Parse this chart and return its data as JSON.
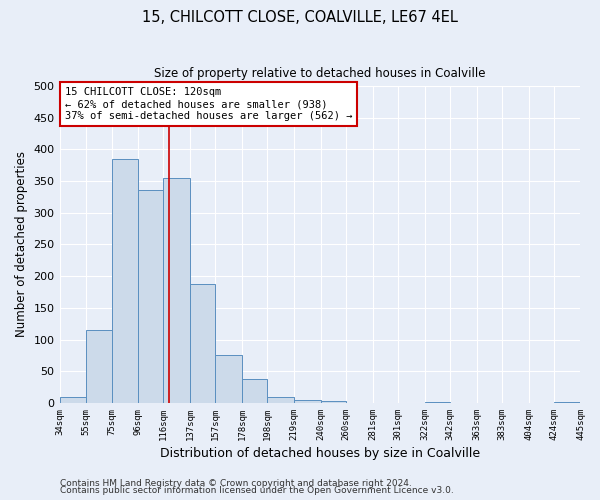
{
  "title": "15, CHILCOTT CLOSE, COALVILLE, LE67 4EL",
  "subtitle": "Size of property relative to detached houses in Coalville",
  "xlabel": "Distribution of detached houses by size in Coalville",
  "ylabel": "Number of detached properties",
  "bar_color": "#ccdaea",
  "bar_edge_color": "#5a8fc0",
  "background_color": "#e8eef8",
  "plot_bg_color": "#e8eef8",
  "grid_color": "#ffffff",
  "property_line_x": 120,
  "property_line_color": "#cc0000",
  "annotation_title": "15 CHILCOTT CLOSE: 120sqm",
  "annotation_line1": "← 62% of detached houses are smaller (938)",
  "annotation_line2": "37% of semi-detached houses are larger (562) →",
  "annotation_box_color": "#ffffff",
  "annotation_box_edge": "#cc0000",
  "bin_edges": [
    34,
    55,
    75,
    96,
    116,
    137,
    157,
    178,
    198,
    219,
    240,
    260,
    281,
    301,
    322,
    342,
    363,
    383,
    404,
    424,
    445
  ],
  "bar_heights": [
    10,
    115,
    385,
    335,
    355,
    188,
    75,
    38,
    10,
    5,
    3,
    0,
    0,
    0,
    2,
    0,
    0,
    0,
    0,
    2
  ],
  "ylim": [
    0,
    500
  ],
  "yticks": [
    0,
    50,
    100,
    150,
    200,
    250,
    300,
    350,
    400,
    450,
    500
  ],
  "footer_line1": "Contains HM Land Registry data © Crown copyright and database right 2024.",
  "footer_line2": "Contains public sector information licensed under the Open Government Licence v3.0."
}
